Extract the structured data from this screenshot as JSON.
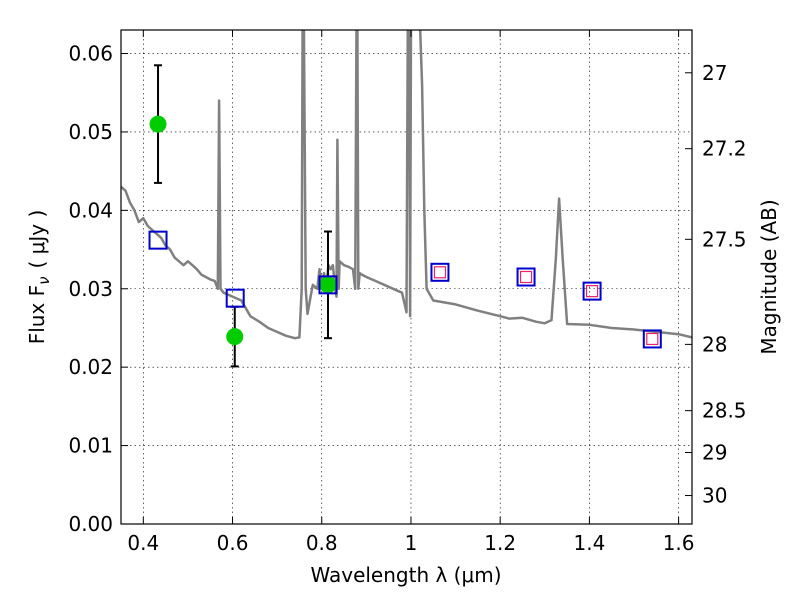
{
  "chart_data": {
    "type": "scatter",
    "xlabel": "Wavelength  λ (μm)",
    "ylabel": "Flux  F",
    "ylabel_sub": "ν",
    "ylabel_unit": "( μJy )",
    "y2label": "Magnitude (AB)",
    "xlim": [
      0.35,
      1.63
    ],
    "ylim": [
      0.0,
      0.063
    ],
    "grid": true,
    "x_ticks": [
      0.4,
      0.6,
      0.8,
      1.0,
      1.2,
      1.4,
      1.6
    ],
    "x_tick_labels": [
      "0.4",
      "0.6",
      "0.8",
      "1",
      "1.2",
      "1.4",
      "1.6"
    ],
    "y_ticks": [
      0.0,
      0.01,
      0.02,
      0.03,
      0.04,
      0.05,
      0.06
    ],
    "y_tick_labels": [
      "0.00",
      "0.01",
      "0.02",
      "0.03",
      "0.04",
      "0.05",
      "0.06"
    ],
    "y2_ticks": [
      27,
      27.2,
      27.5,
      28,
      28.5,
      29,
      30
    ],
    "y2_tick_labels": [
      "27",
      "27.2",
      "27.5",
      "28",
      "28.5",
      "29",
      "30"
    ],
    "colors": {
      "spectrum": "#808080",
      "observed": "#00cc00",
      "model_box": "#0000cc",
      "model_inner": "#ee2266",
      "errorbar": "#000000"
    },
    "series": [
      {
        "role": "model-spectrum",
        "x": [
          0.35,
          0.36,
          0.37,
          0.38,
          0.39,
          0.4,
          0.41,
          0.42,
          0.43,
          0.44,
          0.45,
          0.46,
          0.47,
          0.48,
          0.49,
          0.5,
          0.51,
          0.52,
          0.53,
          0.54,
          0.55,
          0.56,
          0.567,
          0.57,
          0.573,
          0.58,
          0.6,
          0.62,
          0.64,
          0.66,
          0.68,
          0.7,
          0.72,
          0.74,
          0.75,
          0.755,
          0.757,
          0.76,
          0.764,
          0.768,
          0.775,
          0.78,
          0.79,
          0.795,
          0.8,
          0.805,
          0.81,
          0.815,
          0.82,
          0.825,
          0.83,
          0.833,
          0.835,
          0.838,
          0.84,
          0.85,
          0.86,
          0.87,
          0.875,
          0.878,
          0.88,
          0.882,
          0.885,
          0.89,
          0.9,
          0.92,
          0.94,
          0.96,
          0.98,
          0.99,
          0.993,
          0.996,
          0.998,
          1.0,
          1.002,
          1.005,
          1.01,
          1.015,
          1.02,
          1.025,
          1.03,
          1.035,
          1.05,
          1.1,
          1.15,
          1.2,
          1.22,
          1.25,
          1.28,
          1.3,
          1.315,
          1.325,
          1.332,
          1.34,
          1.35,
          1.4,
          1.45,
          1.5,
          1.55,
          1.6,
          1.63
        ],
        "y": [
          0.043,
          0.0425,
          0.041,
          0.04,
          0.0385,
          0.039,
          0.038,
          0.0375,
          0.037,
          0.0365,
          0.0355,
          0.035,
          0.034,
          0.0335,
          0.033,
          0.0335,
          0.033,
          0.0325,
          0.0318,
          0.0315,
          0.0312,
          0.031,
          0.03,
          0.054,
          0.03,
          0.0295,
          0.029,
          0.0285,
          0.0265,
          0.0258,
          0.025,
          0.0245,
          0.024,
          0.0237,
          0.0238,
          0.03,
          0.064,
          0.064,
          0.03,
          0.0268,
          0.029,
          0.0305,
          0.03,
          0.0325,
          0.03,
          0.032,
          0.03,
          0.033,
          0.0325,
          0.033,
          0.03,
          0.029,
          0.049,
          0.03,
          0.0335,
          0.033,
          0.0328,
          0.0325,
          0.03,
          0.064,
          0.064,
          0.03,
          0.032,
          0.0318,
          0.0315,
          0.031,
          0.0305,
          0.03,
          0.0295,
          0.027,
          0.064,
          0.064,
          0.0265,
          0.064,
          0.064,
          0.064,
          0.064,
          0.064,
          0.064,
          0.056,
          0.04,
          0.03,
          0.0285,
          0.028,
          0.0272,
          0.0265,
          0.0262,
          0.0263,
          0.0258,
          0.0256,
          0.026,
          0.034,
          0.0415,
          0.034,
          0.0255,
          0.0254,
          0.025,
          0.0248,
          0.0245,
          0.0242,
          0.0238
        ]
      },
      {
        "role": "observed",
        "x": [
          0.433,
          0.605,
          0.814
        ],
        "y": [
          0.051,
          0.0239,
          0.0305
        ],
        "yerr": [
          0.0075,
          0.0038,
          0.0068
        ]
      },
      {
        "role": "model-photometry",
        "x": [
          0.433,
          0.606,
          0.814,
          1.065,
          1.258,
          1.406,
          1.541
        ],
        "y": [
          0.0362,
          0.0288,
          0.0305,
          0.0321,
          0.0315,
          0.0297,
          0.0236
        ],
        "inner": [
          false,
          false,
          false,
          true,
          true,
          true,
          true
        ]
      }
    ]
  }
}
